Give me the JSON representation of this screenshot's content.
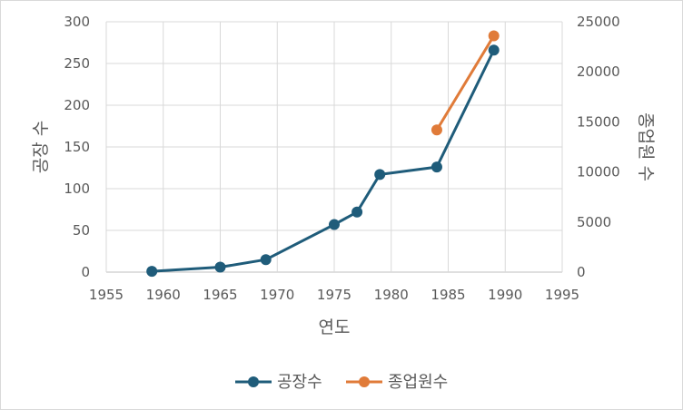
{
  "chart_data": {
    "type": "line",
    "xlabel": "연도",
    "ylabel_left": "공장 수",
    "ylabel_right": "종업원 수",
    "xlim": [
      1955,
      1995
    ],
    "xticks": [
      1955,
      1960,
      1965,
      1970,
      1975,
      1980,
      1985,
      1990,
      1995
    ],
    "ylim_left": [
      0,
      300
    ],
    "yticks_left": [
      0,
      50,
      100,
      150,
      200,
      250,
      300
    ],
    "ylim_right": [
      0,
      25000
    ],
    "yticks_right": [
      0,
      5000,
      10000,
      15000,
      20000,
      25000
    ],
    "grid": true,
    "legend_position": "bottom",
    "series": [
      {
        "name": "공장수",
        "axis": "left",
        "color": "#1f5c7a",
        "x": [
          1959,
          1965,
          1969,
          1975,
          1977,
          1979,
          1984,
          1989
        ],
        "values": [
          1,
          6,
          15,
          57,
          72,
          117,
          126,
          266
        ]
      },
      {
        "name": "종업원수",
        "axis": "right",
        "color": "#e07b39",
        "x": [
          1984,
          1989
        ],
        "values": [
          14200,
          23600
        ]
      }
    ]
  }
}
